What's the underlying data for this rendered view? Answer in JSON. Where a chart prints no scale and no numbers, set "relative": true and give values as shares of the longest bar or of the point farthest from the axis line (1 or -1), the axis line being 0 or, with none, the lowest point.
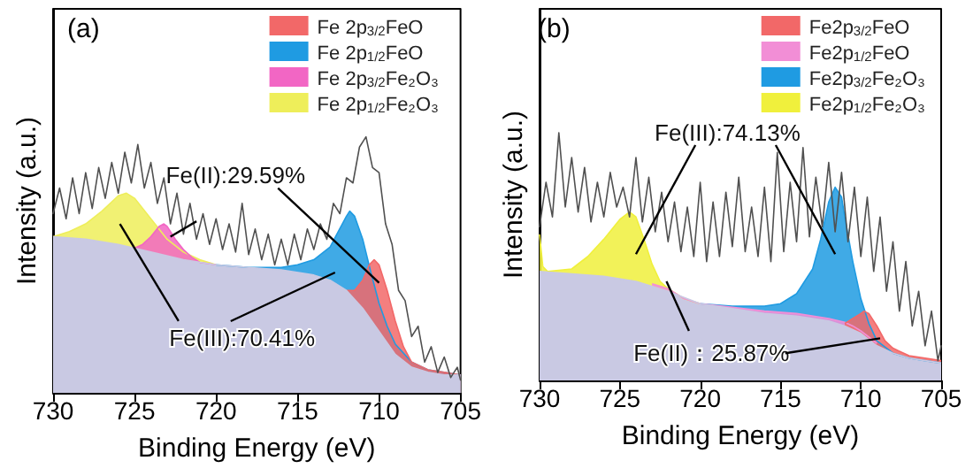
{
  "chart_data": [
    {
      "type": "line",
      "title": "(a)",
      "xlabel": "Binding Energy (eV)",
      "ylabel": "Intensity (a.u.)",
      "relative": true,
      "xlim": [
        730,
        705
      ],
      "xticks": [
        730,
        725,
        720,
        715,
        710,
        705
      ],
      "legend": "top right",
      "annotations": [
        "Fe(II):29.59%",
        "Fe(III):70.41%"
      ],
      "series": [
        {
          "type": "line",
          "color": "#505050",
          "x": [
            730,
            729.6,
            729.2,
            728.8,
            728.4,
            728,
            727.6,
            727.2,
            726.8,
            726.4,
            726,
            725.6,
            725.2,
            724.8,
            724.4,
            724,
            723.6,
            723.2,
            722.8,
            722.4,
            722,
            721.6,
            721.2,
            720.8,
            720.4,
            720,
            719.6,
            719.2,
            718.8,
            718.4,
            718,
            717.6,
            717.2,
            716.8,
            716.4,
            716,
            715.6,
            715.2,
            714.8,
            714.4,
            714,
            713.6,
            713.2,
            712.8,
            712.4,
            712,
            711.6,
            711.2,
            710.8,
            710.4,
            710,
            709.6,
            709.2,
            708.8,
            708.4,
            708,
            707.6,
            707.2,
            706.8,
            706.4,
            706,
            705.6,
            705.2,
            705
          ],
          "values": [
            0.7,
            0.8,
            0.68,
            0.84,
            0.7,
            0.86,
            0.72,
            0.88,
            0.76,
            0.9,
            0.78,
            0.94,
            0.82,
            0.97,
            0.8,
            0.9,
            0.74,
            0.84,
            0.66,
            0.78,
            0.62,
            0.74,
            0.6,
            0.7,
            0.58,
            0.68,
            0.56,
            0.66,
            0.55,
            0.74,
            0.54,
            0.64,
            0.52,
            0.62,
            0.5,
            0.6,
            0.5,
            0.62,
            0.52,
            0.64,
            0.56,
            0.66,
            0.6,
            0.74,
            0.7,
            0.84,
            0.82,
            0.96,
            1.0,
            0.88,
            0.86,
            0.66,
            0.58,
            0.4,
            0.36,
            0.22,
            0.26,
            0.12,
            0.18,
            0.08,
            0.14,
            0.06,
            0.1,
            0.05
          ]
        },
        {
          "type": "area",
          "color": "#c9c9e3",
          "x": [
            730,
            728,
            726,
            724,
            722,
            720,
            718,
            716,
            714,
            713,
            712,
            711,
            710,
            709,
            708,
            707,
            706,
            705
          ],
          "values": [
            0.61,
            0.6,
            0.58,
            0.55,
            0.52,
            0.5,
            0.49,
            0.48,
            0.46,
            0.44,
            0.4,
            0.33,
            0.24,
            0.15,
            0.1,
            0.08,
            0.07,
            0.07
          ]
        },
        {
          "type": "area",
          "name": "Fe 2p$_{3/2}$FeO",
          "color": "#f26868",
          "x": [
            712,
            711.5,
            711,
            710.6,
            710.3,
            710,
            709.5,
            709,
            708.5,
            708,
            707,
            706,
            705
          ],
          "values": [
            0.4,
            0.4,
            0.44,
            0.5,
            0.52,
            0.5,
            0.4,
            0.28,
            0.18,
            0.12,
            0.09,
            0.08,
            0.07
          ]
        },
        {
          "type": "area",
          "name": "Fe 2p$_{1/2}$FeO",
          "color": "#1f9be2",
          "x": [
            720,
            718,
            716,
            715,
            714,
            713,
            712.5,
            712,
            711.8,
            711.5,
            711,
            710.5,
            710,
            709.5,
            709,
            708,
            707,
            706,
            705
          ],
          "values": [
            0.5,
            0.49,
            0.49,
            0.5,
            0.52,
            0.57,
            0.63,
            0.69,
            0.71,
            0.69,
            0.6,
            0.47,
            0.35,
            0.26,
            0.19,
            0.12,
            0.09,
            0.08,
            0.07
          ]
        },
        {
          "type": "area",
          "name": "Fe 2p$_{3/2}$Fe₂O₃",
          "color": "#f266c4",
          "x": [
            725,
            724.5,
            724,
            723.5,
            723.2,
            723,
            722.5,
            722,
            721.5,
            721,
            720
          ],
          "values": [
            0.565,
            0.58,
            0.61,
            0.65,
            0.66,
            0.65,
            0.6,
            0.56,
            0.53,
            0.51,
            0.5
          ]
        },
        {
          "type": "area",
          "name": "Fe 2p$_{1/2}$Fe₂O₃",
          "color": "#eeee5a",
          "x": [
            730,
            729,
            728,
            727,
            726,
            725.5,
            725,
            724,
            723,
            722,
            721,
            720
          ],
          "values": [
            0.61,
            0.63,
            0.66,
            0.71,
            0.77,
            0.78,
            0.76,
            0.68,
            0.6,
            0.55,
            0.52,
            0.5
          ]
        }
      ]
    },
    {
      "type": "line",
      "title": "(b)",
      "xlabel": "Binding Energy (eV)",
      "ylabel": "Intensity (a.u.)",
      "relative": true,
      "xlim": [
        730,
        705
      ],
      "xticks": [
        730,
        725,
        720,
        715,
        710,
        705
      ],
      "legend": "top right",
      "annotations": [
        "Fe(III):74.13%",
        "Fe(II)：25.87%"
      ],
      "series": [
        {
          "type": "line",
          "color": "#505050",
          "x": [
            730,
            729.6,
            729.2,
            728.8,
            728.4,
            728,
            727.6,
            727.2,
            726.8,
            726.4,
            726,
            725.6,
            725.2,
            724.8,
            724.4,
            724,
            723.6,
            723.2,
            722.8,
            722.4,
            722,
            721.6,
            721.2,
            720.8,
            720.4,
            720,
            719.6,
            719.2,
            718.8,
            718.4,
            718,
            717.6,
            717.2,
            716.8,
            716.4,
            716,
            715.6,
            715.2,
            714.8,
            714.4,
            714,
            713.6,
            713.2,
            712.8,
            712.4,
            712,
            711.6,
            711.2,
            710.8,
            710.4,
            710,
            709.6,
            709.2,
            708.8,
            708.4,
            708,
            707.6,
            707.2,
            706.8,
            706.4,
            706,
            705.6,
            705.2,
            705
          ],
          "values": [
            0.62,
            0.8,
            0.66,
            1.0,
            0.7,
            0.9,
            0.68,
            0.86,
            0.64,
            0.8,
            0.66,
            0.84,
            0.7,
            0.78,
            0.66,
            0.9,
            0.64,
            0.82,
            0.6,
            0.76,
            0.56,
            0.72,
            0.52,
            0.7,
            0.5,
            0.8,
            0.48,
            0.72,
            0.5,
            0.76,
            0.54,
            0.82,
            0.52,
            0.7,
            0.5,
            0.78,
            0.48,
            0.92,
            0.52,
            0.8,
            0.56,
            0.94,
            0.58,
            0.82,
            0.62,
            0.88,
            0.6,
            0.84,
            0.56,
            0.78,
            0.5,
            0.74,
            0.44,
            0.66,
            0.36,
            0.56,
            0.28,
            0.48,
            0.22,
            0.36,
            0.14,
            0.28,
            0.08,
            0.14
          ]
        },
        {
          "type": "area",
          "color": "#c9c9e3",
          "x": [
            730,
            728,
            726,
            724,
            722,
            720,
            718,
            716,
            714,
            712,
            711,
            710,
            709,
            708,
            707,
            706,
            705
          ],
          "values": [
            0.44,
            0.43,
            0.42,
            0.4,
            0.36,
            0.31,
            0.29,
            0.27,
            0.26,
            0.24,
            0.22,
            0.19,
            0.14,
            0.11,
            0.09,
            0.08,
            0.07
          ]
        },
        {
          "type": "area",
          "name": "Fe2p$_{3/2}$FeO",
          "color": "#f26868",
          "x": [
            711,
            710.5,
            710,
            709.8,
            709.5,
            709,
            708.5,
            708,
            707,
            706,
            705
          ],
          "values": [
            0.23,
            0.25,
            0.27,
            0.28,
            0.27,
            0.22,
            0.16,
            0.13,
            0.1,
            0.09,
            0.08
          ]
        },
        {
          "type": "area",
          "name": "Fe2p$_{1/2}$FeO",
          "color": "#f28ed6",
          "x": [
            723,
            722.5,
            722,
            721.5,
            721,
            720,
            718,
            716,
            714,
            712,
            711,
            710.5,
            710,
            709
          ],
          "values": [
            0.39,
            0.38,
            0.37,
            0.35,
            0.33,
            0.31,
            0.295,
            0.28,
            0.27,
            0.25,
            0.235,
            0.22,
            0.2,
            0.15
          ]
        },
        {
          "type": "area",
          "name": "Fe2p$_{3/2}$Fe₂O₃",
          "color": "#1f9be2",
          "x": [
            720,
            718,
            716,
            715,
            714,
            713,
            712.5,
            712,
            711.6,
            711.2,
            711,
            710.5,
            710,
            709.5,
            709,
            708,
            707,
            706,
            705
          ],
          "values": [
            0.31,
            0.3,
            0.3,
            0.31,
            0.35,
            0.45,
            0.57,
            0.72,
            0.78,
            0.74,
            0.66,
            0.48,
            0.33,
            0.23,
            0.16,
            0.11,
            0.09,
            0.08,
            0.07
          ]
        },
        {
          "type": "area",
          "name": "Fe2p$_{1/2}$Fe₂O₃",
          "color": "#f0f03c",
          "x": [
            730,
            729.8,
            729.5,
            728,
            727,
            726,
            725,
            724.4,
            724,
            723.5,
            723,
            722.5,
            722,
            721,
            720
          ],
          "values": [
            0.59,
            0.46,
            0.44,
            0.45,
            0.5,
            0.57,
            0.65,
            0.68,
            0.66,
            0.57,
            0.47,
            0.4,
            0.37,
            0.33,
            0.31
          ]
        }
      ]
    }
  ]
}
